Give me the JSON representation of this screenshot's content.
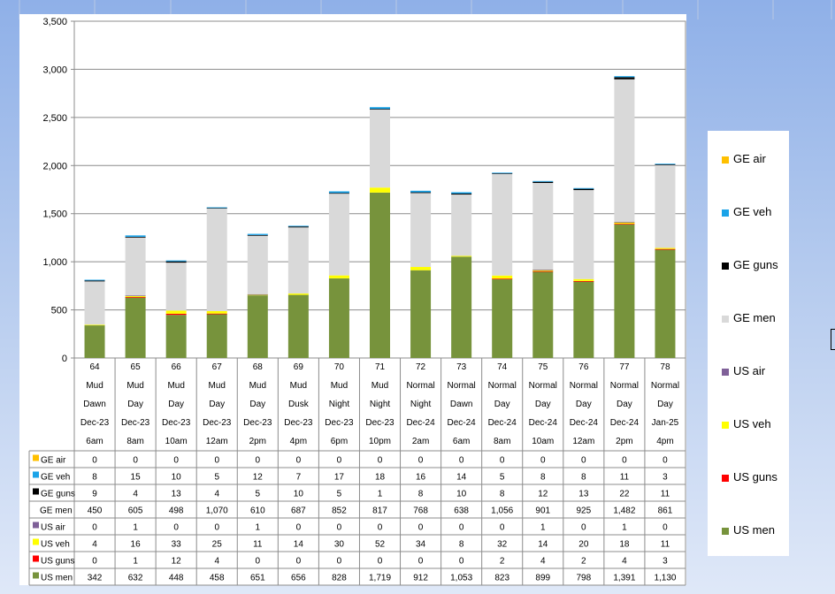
{
  "chart_data": {
    "type": "bar",
    "stacked": true,
    "title": "",
    "xlabel": "",
    "ylabel": "",
    "ylim": [
      0,
      3500
    ],
    "yticks": [
      "0",
      "500",
      "1,000",
      "1,500",
      "2,000",
      "2,500",
      "3,000",
      "3,500"
    ],
    "grid": true,
    "legend_position": "right",
    "categories": [
      [
        "64",
        "Mud",
        "Dawn",
        "Dec-23",
        "6am"
      ],
      [
        "65",
        "Mud",
        "Day",
        "Dec-23",
        "8am"
      ],
      [
        "66",
        "Mud",
        "Day",
        "Dec-23",
        "10am"
      ],
      [
        "67",
        "Mud",
        "Day",
        "Dec-23",
        "12am"
      ],
      [
        "68",
        "Mud",
        "Day",
        "Dec-23",
        "2pm"
      ],
      [
        "69",
        "Mud",
        "Dusk",
        "Dec-23",
        "4pm"
      ],
      [
        "70",
        "Mud",
        "Night",
        "Dec-23",
        "6pm"
      ],
      [
        "71",
        "Mud",
        "Night",
        "Dec-23",
        "10pm"
      ],
      [
        "72",
        "Normal",
        "Night",
        "Dec-24",
        "2am"
      ],
      [
        "73",
        "Normal",
        "Dawn",
        "Dec-24",
        "6am"
      ],
      [
        "74",
        "Normal",
        "Day",
        "Dec-24",
        "8am"
      ],
      [
        "75",
        "Normal",
        "Day",
        "Dec-24",
        "10am"
      ],
      [
        "76",
        "Normal",
        "Day",
        "Dec-24",
        "12am"
      ],
      [
        "77",
        "Normal",
        "Day",
        "Dec-24",
        "2pm"
      ],
      [
        "78",
        "Normal",
        "Day",
        "Jan-25",
        "4pm"
      ]
    ],
    "series": [
      {
        "name": "US men",
        "color": "#77933c",
        "values": [
          342,
          632,
          448,
          458,
          651,
          656,
          828,
          1719,
          912,
          1053,
          823,
          899,
          798,
          1391,
          1130
        ],
        "labels": [
          "342",
          "632",
          "448",
          "458",
          "651",
          "656",
          "828",
          "1,719",
          "912",
          "1,053",
          "823",
          "899",
          "798",
          "1,391",
          "1,130"
        ]
      },
      {
        "name": "US guns",
        "color": "#ff0000",
        "values": [
          0,
          1,
          12,
          4,
          0,
          0,
          0,
          0,
          0,
          0,
          2,
          4,
          2,
          4,
          3
        ],
        "labels": [
          "0",
          "1",
          "12",
          "4",
          "0",
          "0",
          "0",
          "0",
          "0",
          "0",
          "2",
          "4",
          "2",
          "4",
          "3"
        ]
      },
      {
        "name": "US veh",
        "color": "#ffff00",
        "values": [
          4,
          16,
          33,
          25,
          11,
          14,
          30,
          52,
          34,
          8,
          32,
          14,
          20,
          18,
          11
        ],
        "labels": [
          "4",
          "16",
          "33",
          "25",
          "11",
          "14",
          "30",
          "52",
          "34",
          "8",
          "32",
          "14",
          "20",
          "18",
          "11"
        ]
      },
      {
        "name": "US air",
        "color": "#7f6098",
        "values": [
          0,
          1,
          0,
          0,
          1,
          0,
          0,
          0,
          0,
          0,
          0,
          1,
          0,
          1,
          0
        ],
        "labels": [
          "0",
          "1",
          "0",
          "0",
          "1",
          "0",
          "0",
          "0",
          "0",
          "0",
          "0",
          "1",
          "0",
          "1",
          "0"
        ]
      },
      {
        "name": "GE men",
        "color": "#d9d9d9",
        "values": [
          450,
          605,
          498,
          1070,
          610,
          687,
          852,
          817,
          768,
          638,
          1056,
          901,
          925,
          1482,
          861
        ],
        "labels": [
          "450",
          "605",
          "498",
          "1,070",
          "610",
          "687",
          "852",
          "817",
          "768",
          "638",
          "1,056",
          "901",
          "925",
          "1,482",
          "861"
        ]
      },
      {
        "name": "GE guns",
        "color": "#000000",
        "values": [
          9,
          4,
          13,
          4,
          5,
          10,
          5,
          1,
          8,
          10,
          8,
          12,
          13,
          22,
          11
        ],
        "labels": [
          "9",
          "4",
          "13",
          "4",
          "5",
          "10",
          "5",
          "1",
          "8",
          "10",
          "8",
          "12",
          "13",
          "22",
          "11"
        ]
      },
      {
        "name": "GE veh",
        "color": "#1aa3e8",
        "values": [
          8,
          15,
          10,
          5,
          12,
          7,
          17,
          18,
          16,
          14,
          5,
          8,
          8,
          11,
          3
        ],
        "labels": [
          "8",
          "15",
          "10",
          "5",
          "12",
          "7",
          "17",
          "18",
          "16",
          "14",
          "5",
          "8",
          "8",
          "11",
          "3"
        ]
      },
      {
        "name": "GE air",
        "color": "#ffc000",
        "values": [
          0,
          0,
          0,
          0,
          0,
          0,
          0,
          0,
          0,
          0,
          0,
          0,
          0,
          0,
          0
        ],
        "labels": [
          "0",
          "0",
          "0",
          "0",
          "0",
          "0",
          "0",
          "0",
          "0",
          "0",
          "0",
          "0",
          "0",
          "0",
          "0"
        ]
      }
    ]
  },
  "table_row_order": [
    "GE air",
    "GE veh",
    "GE guns",
    "GE men",
    "US air",
    "US veh",
    "US guns",
    "US men"
  ],
  "legend_order": [
    "GE air",
    "GE veh",
    "GE guns",
    "GE men",
    "US air",
    "US veh",
    "US guns",
    "US men"
  ]
}
